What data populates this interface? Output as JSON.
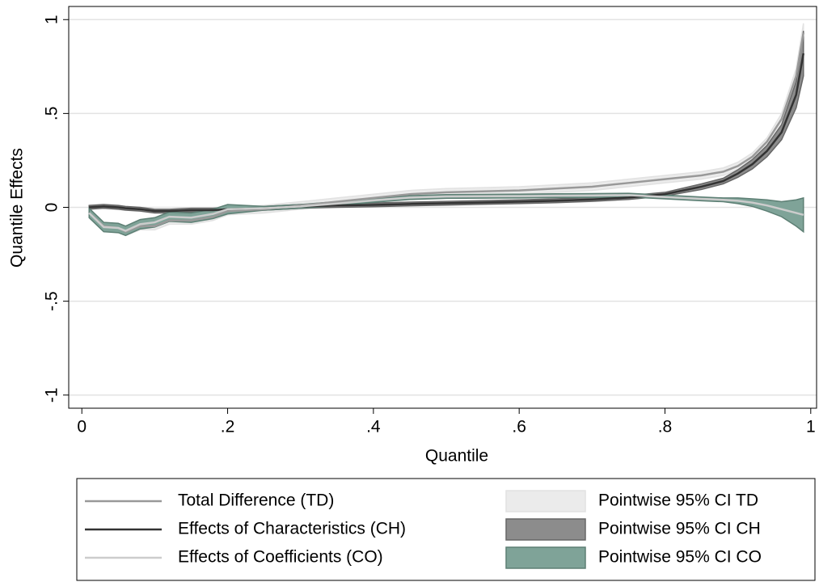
{
  "chart_data": {
    "type": "line",
    "x_label": "Quantile",
    "y_label": "Quantile Effects",
    "xlim": [
      -0.018,
      1.008
    ],
    "ylim": [
      -1.07,
      1.07
    ],
    "xticks": [
      0,
      {
        "value": 0.2,
        "label": ".2"
      },
      {
        "value": 0.4,
        "label": ".4"
      },
      {
        "value": 0.6,
        "label": ".6"
      },
      {
        "value": 0.8,
        "label": ".8"
      },
      1
    ],
    "yticks": [
      -1,
      {
        "value": -0.5,
        "label": "-.5"
      },
      0,
      {
        "value": 0.5,
        "label": ".5"
      },
      1
    ],
    "grid": true,
    "legend": "bottom",
    "x": [
      0.01,
      0.03,
      0.05,
      0.06,
      0.08,
      0.1,
      0.12,
      0.15,
      0.18,
      0.2,
      0.25,
      0.3,
      0.35,
      0.4,
      0.45,
      0.5,
      0.55,
      0.6,
      0.65,
      0.7,
      0.75,
      0.8,
      0.85,
      0.88,
      0.9,
      0.92,
      0.94,
      0.96,
      0.98,
      0.99
    ],
    "bands": [
      {
        "name": "Pointwise 95% CI TD",
        "color": "#ebebeb",
        "stroke": "#e2e2e2",
        "lower": [
          -0.05,
          -0.12,
          -0.13,
          -0.15,
          -0.12,
          -0.12,
          -0.09,
          -0.09,
          -0.07,
          -0.04,
          -0.03,
          -0.01,
          0.01,
          0.03,
          0.05,
          0.06,
          0.065,
          0.07,
          0.08,
          0.09,
          0.11,
          0.13,
          0.15,
          0.17,
          0.2,
          0.25,
          0.33,
          0.44,
          0.66,
          0.88
        ],
        "upper": [
          -0.01,
          -0.08,
          -0.09,
          -0.11,
          -0.08,
          -0.08,
          -0.05,
          -0.05,
          -0.03,
          0,
          0.01,
          0.03,
          0.05,
          0.07,
          0.09,
          0.1,
          0.105,
          0.11,
          0.12,
          0.13,
          0.15,
          0.17,
          0.19,
          0.21,
          0.24,
          0.29,
          0.37,
          0.5,
          0.74,
          0.98
        ]
      },
      {
        "name": "Pointwise 95% CI CH",
        "color": "#8c8c8c",
        "stroke": "#666666",
        "lower": [
          -0.01,
          -0.005,
          -0.01,
          -0.015,
          -0.02,
          -0.03,
          -0.03,
          -0.025,
          -0.025,
          -0.02,
          -0.015,
          -0.005,
          0,
          0.003,
          0.008,
          0.012,
          0.016,
          0.02,
          0.025,
          0.032,
          0.042,
          0.06,
          0.095,
          0.125,
          0.16,
          0.205,
          0.27,
          0.36,
          0.53,
          0.7
        ],
        "upper": [
          0.01,
          0.015,
          0.01,
          0.005,
          0,
          -0.01,
          -0.01,
          -0.005,
          -0.005,
          0,
          0.005,
          0.015,
          0.02,
          0.023,
          0.028,
          0.032,
          0.036,
          0.04,
          0.045,
          0.052,
          0.062,
          0.08,
          0.125,
          0.155,
          0.2,
          0.255,
          0.33,
          0.44,
          0.67,
          0.94
        ]
      },
      {
        "name": "Pointwise 95% CI CO",
        "color": "#7fa398",
        "stroke": "#5d7f74",
        "lower": [
          -0.055,
          -0.13,
          -0.135,
          -0.15,
          -0.115,
          -0.105,
          -0.075,
          -0.08,
          -0.06,
          -0.035,
          -0.015,
          -0.005,
          0.01,
          0.027,
          0.042,
          0.048,
          0.049,
          0.05,
          0.052,
          0.053,
          0.055,
          0.045,
          0.035,
          0.03,
          0.02,
          0.005,
          -0.02,
          -0.05,
          -0.1,
          -0.13
        ],
        "upper": [
          -0.005,
          -0.08,
          -0.085,
          -0.1,
          -0.065,
          -0.055,
          -0.025,
          -0.03,
          -0.01,
          0.015,
          0.005,
          0.015,
          0.03,
          0.047,
          0.062,
          0.068,
          0.069,
          0.07,
          0.072,
          0.073,
          0.075,
          0.065,
          0.055,
          0.05,
          0.05,
          0.045,
          0.04,
          0.03,
          0.04,
          0.05
        ]
      }
    ],
    "series": [
      {
        "name": "Total Difference (TD)",
        "color": "#999999",
        "values": [
          -0.03,
          -0.1,
          -0.11,
          -0.13,
          -0.1,
          -0.1,
          -0.07,
          -0.07,
          -0.05,
          -0.02,
          -0.01,
          0.01,
          0.03,
          0.05,
          0.07,
          0.08,
          0.085,
          0.09,
          0.1,
          0.11,
          0.13,
          0.15,
          0.17,
          0.19,
          0.22,
          0.27,
          0.35,
          0.47,
          0.7,
          0.93
        ]
      },
      {
        "name": "Effects of Characteristics (CH)",
        "color": "#333333",
        "values": [
          0,
          0.005,
          0,
          -0.005,
          -0.01,
          -0.02,
          -0.02,
          -0.015,
          -0.015,
          -0.01,
          -0.005,
          0.005,
          0.01,
          0.013,
          0.018,
          0.022,
          0.026,
          0.03,
          0.035,
          0.042,
          0.052,
          0.07,
          0.11,
          0.14,
          0.18,
          0.23,
          0.3,
          0.4,
          0.6,
          0.82
        ]
      },
      {
        "name": "Effects of Coefficients (CO)",
        "color": "#cccccc",
        "values": [
          -0.03,
          -0.105,
          -0.11,
          -0.125,
          -0.09,
          -0.08,
          -0.05,
          -0.055,
          -0.035,
          -0.01,
          -0.005,
          0.005,
          0.02,
          0.037,
          0.052,
          0.058,
          0.059,
          0.06,
          0.062,
          0.063,
          0.065,
          0.055,
          0.045,
          0.04,
          0.035,
          0.025,
          0.01,
          -0.01,
          -0.03,
          -0.04
        ]
      }
    ]
  }
}
